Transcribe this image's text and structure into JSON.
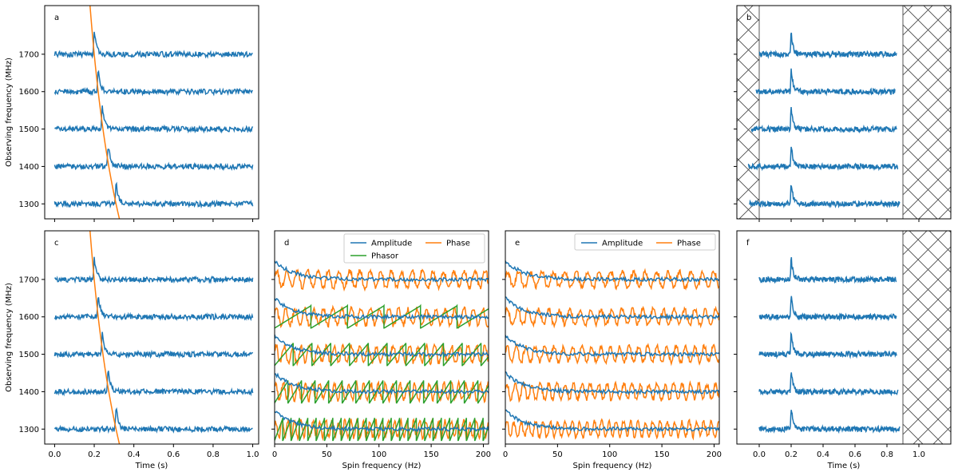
{
  "colors": {
    "amplitude": "#1f77b4",
    "phase": "#ff7f0e",
    "phasor": "#2ca02c",
    "axis": "#000000"
  },
  "chart_data": [
    {
      "id": "a",
      "type": "line",
      "panel_label": "a",
      "xlabel": "",
      "ylabel": "Observing frequency (MHz)",
      "xlim": [
        -0.05,
        1.03
      ],
      "ylim": [
        1260,
        1830
      ],
      "xticks": [
        0.0,
        0.2,
        0.4,
        0.6,
        0.8,
        1.0
      ],
      "xtick_labels_visible": false,
      "yticks": [
        1300,
        1400,
        1500,
        1600,
        1700
      ],
      "channels": [
        1300,
        1400,
        1500,
        1600,
        1700
      ],
      "trace_xrange": [
        0.0,
        1.0
      ],
      "pulse_times": [
        0.31,
        0.27,
        0.24,
        0.22,
        0.2
      ],
      "pulse_height": 60,
      "dispersion_curve": true,
      "hatch_regions": []
    },
    {
      "id": "b",
      "type": "line",
      "panel_label": "b",
      "xlabel": "",
      "ylabel": "",
      "xlim": [
        -0.14,
        1.2
      ],
      "ylim": [
        1260,
        1830
      ],
      "xticks": [
        0.0,
        0.2,
        0.4,
        0.6,
        0.8,
        1.0
      ],
      "xtick_labels_visible": false,
      "yticks": [
        1300,
        1400,
        1500,
        1600,
        1700
      ],
      "ytick_labels_visible": false,
      "channels": [
        1300,
        1400,
        1500,
        1600,
        1700
      ],
      "trace_xranges": [
        [
          -0.06,
          0.88
        ],
        [
          -0.07,
          0.87
        ],
        [
          -0.05,
          0.86
        ],
        [
          -0.02,
          0.85
        ],
        [
          0.0,
          0.86
        ]
      ],
      "pulse_times": [
        0.2,
        0.2,
        0.2,
        0.2,
        0.2
      ],
      "pulse_height": 60,
      "hatch_regions": [
        [
          -0.14,
          0.0
        ],
        [
          0.9,
          1.2
        ]
      ]
    },
    {
      "id": "c",
      "type": "line",
      "panel_label": "c",
      "xlabel": "Time (s)",
      "ylabel": "Observing frequency (MHz)",
      "xlim": [
        -0.05,
        1.03
      ],
      "ylim": [
        1260,
        1830
      ],
      "xticks": [
        0.0,
        0.2,
        0.4,
        0.6,
        0.8,
        1.0
      ],
      "yticks": [
        1300,
        1400,
        1500,
        1600,
        1700
      ],
      "channels": [
        1300,
        1400,
        1500,
        1600,
        1700
      ],
      "trace_xrange": [
        0.0,
        1.0
      ],
      "pulse_times": [
        0.31,
        0.27,
        0.24,
        0.22,
        0.2
      ],
      "pulse_height": 60,
      "dispersion_curve": true,
      "hatch_regions": []
    },
    {
      "id": "d",
      "type": "line",
      "panel_label": "d",
      "xlabel": "Spin frequency (Hz)",
      "ylabel": "",
      "xlim": [
        0,
        205
      ],
      "ylim": [
        1260,
        1830
      ],
      "xticks": [
        0,
        50,
        100,
        150,
        200
      ],
      "yticks": [
        1300,
        1400,
        1500,
        1600,
        1700
      ],
      "ytick_labels_visible": false,
      "channels": [
        1300,
        1400,
        1500,
        1600,
        1700
      ],
      "legend": {
        "entries": [
          "Amplitude",
          "Phasor",
          "Phase"
        ],
        "location": "upper right"
      },
      "amplitude_decay": 50,
      "phase_period_hz": [
        6.0,
        7.0,
        8.0,
        9.0,
        10.0
      ],
      "phase_amplitude": 28,
      "phasor_period_hz": [
        8,
        13,
        18,
        35,
        null
      ]
    },
    {
      "id": "e",
      "type": "line",
      "panel_label": "e",
      "xlabel": "Spin frequency (Hz)",
      "ylabel": "",
      "xlim": [
        0,
        205
      ],
      "ylim": [
        1260,
        1830
      ],
      "xticks": [
        0,
        50,
        100,
        150,
        200
      ],
      "yticks": [
        1300,
        1400,
        1500,
        1600,
        1700
      ],
      "ytick_labels_visible": false,
      "channels": [
        1300,
        1400,
        1500,
        1600,
        1700
      ],
      "legend": {
        "entries": [
          "Amplitude",
          "Phase"
        ],
        "location": "upper right"
      },
      "amplitude_decay": 50,
      "phase_period_hz": [
        7.0,
        8.0,
        9.0,
        10.0,
        11.0
      ],
      "phase_amplitude": 26
    },
    {
      "id": "f",
      "type": "line",
      "panel_label": "f",
      "xlabel": "Time (s)",
      "ylabel": "",
      "xlim": [
        -0.14,
        1.2
      ],
      "ylim": [
        1260,
        1830
      ],
      "xticks": [
        0.0,
        0.2,
        0.4,
        0.6,
        0.8,
        1.0
      ],
      "yticks": [
        1300,
        1400,
        1500,
        1600,
        1700
      ],
      "ytick_labels_visible": false,
      "channels": [
        1300,
        1400,
        1500,
        1600,
        1700
      ],
      "trace_xranges": [
        [
          0.0,
          0.88
        ],
        [
          0.0,
          0.87
        ],
        [
          0.0,
          0.86
        ],
        [
          0.0,
          0.86
        ],
        [
          0.0,
          0.86
        ]
      ],
      "pulse_times": [
        0.2,
        0.2,
        0.2,
        0.2,
        0.2
      ],
      "pulse_height": 60,
      "hatch_regions": [
        [
          0.9,
          1.2
        ]
      ]
    }
  ]
}
